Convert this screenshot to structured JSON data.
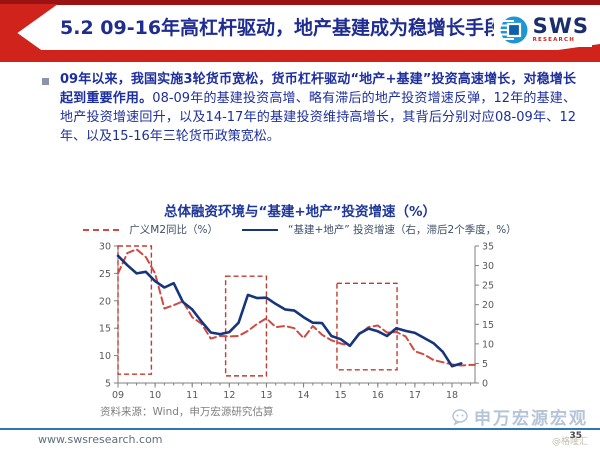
{
  "header": {
    "title": "5.2 09-16年高杠杆驱动，地产基建成为稳增长手段",
    "logo_name": "SWS",
    "logo_sub": "RESEARCH"
  },
  "body": {
    "bold_lead": "09年以来，我国实施3轮货币宽松，货币杠杆驱动“地产+基建”投资高速增长，对稳增长起到重要作用。",
    "rest": "08-09年的基建投资高增、略有滞后的地产投资增速反弹，12年的基建、地产投资增速回升，以及14-17年的基建投资维持高增长，其背后分别对应08-09年、12年、以及15-16年三轮货币政策宽松。"
  },
  "chart_data": {
    "type": "line",
    "title": "总体融资环境与“基建+地产”投资增速（%）",
    "source": "资料来源：Wind，申万宏源研究估算",
    "legend": [
      {
        "label": "广义M2同比（%）",
        "style": "dashed",
        "color": "#cf4a42",
        "axis": "left"
      },
      {
        "label": "“基建+地产” 投资增速（右，滞后2个季度，%）",
        "style": "solid",
        "color": "#17357c",
        "axis": "right"
      }
    ],
    "x_range": [
      9,
      18.62
    ],
    "x_ticks": [
      "09",
      "10",
      "11",
      "12",
      "13",
      "14",
      "15",
      "16",
      "17",
      "18"
    ],
    "left_axis": {
      "min": 5,
      "max": 30,
      "ticks": [
        5,
        10,
        15,
        20,
        25,
        30
      ]
    },
    "right_axis": {
      "min": 0,
      "max": 35,
      "ticks": [
        0,
        5,
        10,
        15,
        20,
        25,
        30,
        35
      ]
    },
    "grid": false,
    "box_color": "#c43a30",
    "highlight_boxes": [
      {
        "x0": 9.0,
        "x1": 9.9,
        "y0": 6.6,
        "y1": 30.0,
        "axis": "left"
      },
      {
        "x0": 11.9,
        "x1": 13.0,
        "y0": 6.3,
        "y1": 24.5,
        "axis": "left"
      },
      {
        "x0": 14.9,
        "x1": 16.52,
        "y0": 7.4,
        "y1": 23.2,
        "axis": "left"
      }
    ],
    "series": [
      {
        "name": "广义M2同比（%）",
        "axis": "left",
        "color": "#cf4a42",
        "dash": "7,4",
        "width": 2,
        "x": [
          9.0,
          9.25,
          9.5,
          9.75,
          10.0,
          10.25,
          10.5,
          10.75,
          11.0,
          11.25,
          11.5,
          11.75,
          12.0,
          12.25,
          12.5,
          12.75,
          13.0,
          13.25,
          13.5,
          13.75,
          14.0,
          14.25,
          14.5,
          14.75,
          15.0,
          15.25,
          15.5,
          15.75,
          16.0,
          16.25,
          16.5,
          16.75,
          17.0,
          17.25,
          17.5,
          17.75,
          18.0,
          18.25,
          18.5,
          18.62
        ],
        "values": [
          25.0,
          28.7,
          29.4,
          28.0,
          25.0,
          18.6,
          19.2,
          19.9,
          17.0,
          15.8,
          13.1,
          13.6,
          13.5,
          13.6,
          14.5,
          15.8,
          16.8,
          15.2,
          15.4,
          15.0,
          13.2,
          15.4,
          13.8,
          12.8,
          12.2,
          11.8,
          13.9,
          15.2,
          15.5,
          14.2,
          14.3,
          13.5,
          10.8,
          10.2,
          9.2,
          8.8,
          8.4,
          8.2,
          8.3,
          8.3
        ]
      },
      {
        "name": "“基建+地产”投资增速（右，滞后2个季度，%）",
        "axis": "right",
        "color": "#17357c",
        "dash": "",
        "width": 2.6,
        "x": [
          9.0,
          9.25,
          9.5,
          9.75,
          10.0,
          10.25,
          10.5,
          10.75,
          11.0,
          11.25,
          11.5,
          11.75,
          12.0,
          12.25,
          12.5,
          12.75,
          13.0,
          13.25,
          13.5,
          13.75,
          14.0,
          14.25,
          14.5,
          14.75,
          15.0,
          15.25,
          15.5,
          15.75,
          16.0,
          16.25,
          16.5,
          16.75,
          17.0,
          17.25,
          17.5,
          17.75,
          18.0,
          18.25
        ],
        "values": [
          32.5,
          30.1,
          28.0,
          28.4,
          26.0,
          24.4,
          25.5,
          20.7,
          18.8,
          15.7,
          12.9,
          12.5,
          13.0,
          15.4,
          22.5,
          21.7,
          21.8,
          20.2,
          18.8,
          18.5,
          16.8,
          15.4,
          15.3,
          12.0,
          11.2,
          9.5,
          12.6,
          13.9,
          13.2,
          12.0,
          14.0,
          13.3,
          12.8,
          11.5,
          10.2,
          8.0,
          4.3,
          5.0
        ]
      }
    ]
  },
  "footer": {
    "url": "www.swsresearch.com",
    "watermark": "申万宏源宏观",
    "watermark2": "@格隆汇",
    "page": "35"
  }
}
